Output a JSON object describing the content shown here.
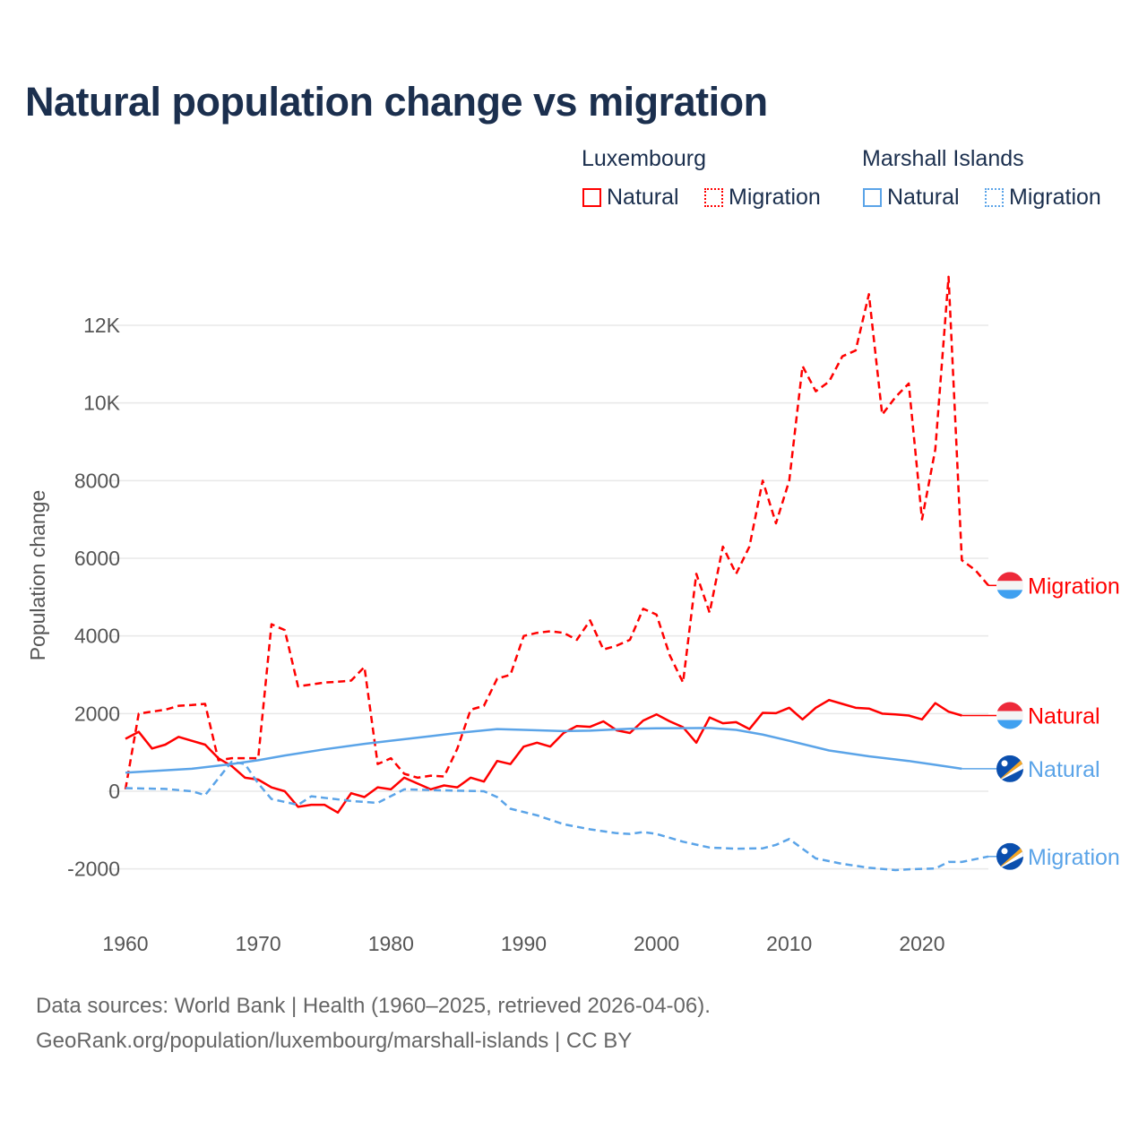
{
  "title": "Natural population change vs migration",
  "legend": {
    "groups": [
      {
        "name": "Luxembourg",
        "items": [
          {
            "label": "Natural",
            "style": "solid",
            "color": "#ff0000"
          },
          {
            "label": "Migration",
            "style": "dotted",
            "color": "#ff0000"
          }
        ]
      },
      {
        "name": "Marshall Islands",
        "items": [
          {
            "label": "Natural",
            "style": "solid",
            "color": "#5ba4e8"
          },
          {
            "label": "Migration",
            "style": "dotted",
            "color": "#5ba4e8"
          }
        ]
      }
    ]
  },
  "footer": {
    "line1": "Data sources: World Bank | Health (1960–2025, retrieved 2026-04-06).",
    "line2": "GeoRank.org/population/luxembourg/marshall-islands | CC BY"
  },
  "chart_data": {
    "type": "line",
    "title": "Natural population change vs migration",
    "xlabel": "",
    "ylabel": "Population change",
    "xlim": [
      1960,
      2025
    ],
    "ylim": [
      -3000,
      13500
    ],
    "xticks": [
      1960,
      1970,
      1980,
      1990,
      2000,
      2010,
      2020
    ],
    "xtick_labels": [
      "1960",
      "1970",
      "1980",
      "1990",
      "2000",
      "2010",
      "2020"
    ],
    "yticks": [
      -2000,
      0,
      2000,
      4000,
      6000,
      8000,
      10000,
      12000
    ],
    "ytick_labels": [
      "-2000",
      "0",
      "2000",
      "4000",
      "6000",
      "8000",
      "10K",
      "12K"
    ],
    "grid": true,
    "series": [
      {
        "name": "Luxembourg Natural",
        "end_label": "Natural",
        "country": "Luxembourg",
        "color": "#ff0000",
        "dash": false,
        "flag": "luxembourg-flag",
        "points": [
          [
            1960,
            1350
          ],
          [
            1961,
            1530
          ],
          [
            1962,
            1100
          ],
          [
            1963,
            1200
          ],
          [
            1964,
            1400
          ],
          [
            1965,
            1300
          ],
          [
            1966,
            1200
          ],
          [
            1967,
            850
          ],
          [
            1968,
            650
          ],
          [
            1969,
            350
          ],
          [
            1970,
            300
          ],
          [
            1971,
            100
          ],
          [
            1972,
            0
          ],
          [
            1973,
            -400
          ],
          [
            1974,
            -350
          ],
          [
            1975,
            -350
          ],
          [
            1976,
            -550
          ],
          [
            1977,
            -50
          ],
          [
            1978,
            -150
          ],
          [
            1979,
            100
          ],
          [
            1980,
            50
          ],
          [
            1981,
            350
          ],
          [
            1982,
            200
          ],
          [
            1983,
            50
          ],
          [
            1984,
            150
          ],
          [
            1985,
            100
          ],
          [
            1986,
            350
          ],
          [
            1987,
            250
          ],
          [
            1988,
            780
          ],
          [
            1989,
            700
          ],
          [
            1990,
            1150
          ],
          [
            1991,
            1250
          ],
          [
            1992,
            1150
          ],
          [
            1993,
            1500
          ],
          [
            1994,
            1680
          ],
          [
            1995,
            1660
          ],
          [
            1996,
            1800
          ],
          [
            1997,
            1570
          ],
          [
            1998,
            1500
          ],
          [
            1999,
            1820
          ],
          [
            2000,
            1980
          ],
          [
            2001,
            1800
          ],
          [
            2002,
            1650
          ],
          [
            2003,
            1250
          ],
          [
            2004,
            1900
          ],
          [
            2005,
            1750
          ],
          [
            2006,
            1780
          ],
          [
            2007,
            1600
          ],
          [
            2008,
            2020
          ],
          [
            2009,
            2010
          ],
          [
            2010,
            2150
          ],
          [
            2011,
            1850
          ],
          [
            2012,
            2150
          ],
          [
            2013,
            2350
          ],
          [
            2014,
            2250
          ],
          [
            2015,
            2150
          ],
          [
            2016,
            2130
          ],
          [
            2017,
            2000
          ],
          [
            2018,
            1980
          ],
          [
            2019,
            1950
          ],
          [
            2020,
            1850
          ],
          [
            2021,
            2270
          ],
          [
            2022,
            2050
          ],
          [
            2023,
            1950
          ]
        ]
      },
      {
        "name": "Luxembourg Migration",
        "end_label": "Migration",
        "country": "Luxembourg",
        "color": "#ff0000",
        "dash": true,
        "flag": "luxembourg-flag",
        "points": [
          [
            1960,
            50
          ],
          [
            1961,
            2000
          ],
          [
            1962,
            2050
          ],
          [
            1963,
            2100
          ],
          [
            1964,
            2200
          ],
          [
            1965,
            2220
          ],
          [
            1966,
            2250
          ],
          [
            1967,
            800
          ],
          [
            1968,
            850
          ],
          [
            1969,
            850
          ],
          [
            1970,
            850
          ],
          [
            1971,
            4300
          ],
          [
            1972,
            4150
          ],
          [
            1973,
            2700
          ],
          [
            1974,
            2750
          ],
          [
            1975,
            2800
          ],
          [
            1976,
            2820
          ],
          [
            1977,
            2850
          ],
          [
            1978,
            3200
          ],
          [
            1979,
            700
          ],
          [
            1980,
            850
          ],
          [
            1981,
            450
          ],
          [
            1982,
            350
          ],
          [
            1983,
            400
          ],
          [
            1984,
            380
          ],
          [
            1985,
            1100
          ],
          [
            1986,
            2100
          ],
          [
            1987,
            2200
          ],
          [
            1988,
            2900
          ],
          [
            1989,
            3000
          ],
          [
            1990,
            4000
          ],
          [
            1991,
            4080
          ],
          [
            1992,
            4120
          ],
          [
            1993,
            4080
          ],
          [
            1994,
            3900
          ],
          [
            1995,
            4400
          ],
          [
            1996,
            3650
          ],
          [
            1997,
            3750
          ],
          [
            1998,
            3900
          ],
          [
            1999,
            4700
          ],
          [
            2000,
            4550
          ],
          [
            2001,
            3500
          ],
          [
            2002,
            2800
          ],
          [
            2003,
            5600
          ],
          [
            2004,
            4600
          ],
          [
            2005,
            6300
          ],
          [
            2006,
            5600
          ],
          [
            2007,
            6300
          ],
          [
            2008,
            8000
          ],
          [
            2009,
            6900
          ],
          [
            2010,
            8000
          ],
          [
            2011,
            10950
          ],
          [
            2012,
            10300
          ],
          [
            2013,
            10550
          ],
          [
            2014,
            11200
          ],
          [
            2015,
            11350
          ],
          [
            2016,
            12800
          ],
          [
            2017,
            9700
          ],
          [
            2018,
            10150
          ],
          [
            2019,
            10500
          ],
          [
            2020,
            7000
          ],
          [
            2021,
            8800
          ],
          [
            2022,
            13250
          ],
          [
            2023,
            5950
          ],
          [
            2024,
            5700
          ],
          [
            2025,
            5300
          ]
        ]
      },
      {
        "name": "Marshall Islands Natural",
        "end_label": "Natural",
        "country": "Marshall Islands",
        "color": "#5ba4e8",
        "dash": false,
        "flag": "marshall-islands-flag",
        "points": [
          [
            1960,
            480
          ],
          [
            1962,
            520
          ],
          [
            1965,
            580
          ],
          [
            1968,
            700
          ],
          [
            1970,
            800
          ],
          [
            1972,
            920
          ],
          [
            1975,
            1080
          ],
          [
            1978,
            1220
          ],
          [
            1980,
            1300
          ],
          [
            1983,
            1420
          ],
          [
            1985,
            1500
          ],
          [
            1988,
            1600
          ],
          [
            1990,
            1580
          ],
          [
            1993,
            1550
          ],
          [
            1995,
            1560
          ],
          [
            1998,
            1610
          ],
          [
            2000,
            1620
          ],
          [
            2004,
            1630
          ],
          [
            2006,
            1580
          ],
          [
            2008,
            1460
          ],
          [
            2010,
            1300
          ],
          [
            2013,
            1050
          ],
          [
            2016,
            900
          ],
          [
            2019,
            780
          ],
          [
            2021,
            680
          ],
          [
            2023,
            580
          ]
        ]
      },
      {
        "name": "Marshall Islands Migration",
        "end_label": "Migration",
        "country": "Marshall Islands",
        "color": "#5ba4e8",
        "dash": true,
        "flag": "marshall-islands-flag",
        "points": [
          [
            1960,
            80
          ],
          [
            1963,
            60
          ],
          [
            1965,
            0
          ],
          [
            1966,
            -100
          ],
          [
            1968,
            760
          ],
          [
            1969,
            700
          ],
          [
            1970,
            200
          ],
          [
            1971,
            -200
          ],
          [
            1973,
            -350
          ],
          [
            1974,
            -130
          ],
          [
            1977,
            -250
          ],
          [
            1979,
            -300
          ],
          [
            1981,
            50
          ],
          [
            1983,
            30
          ],
          [
            1987,
            0
          ],
          [
            1988,
            -150
          ],
          [
            1989,
            -450
          ],
          [
            1991,
            -620
          ],
          [
            1993,
            -850
          ],
          [
            1995,
            -980
          ],
          [
            1997,
            -1080
          ],
          [
            1998,
            -1100
          ],
          [
            1999,
            -1050
          ],
          [
            2000,
            -1100
          ],
          [
            2002,
            -1300
          ],
          [
            2004,
            -1450
          ],
          [
            2006,
            -1480
          ],
          [
            2008,
            -1470
          ],
          [
            2009,
            -1380
          ],
          [
            2010,
            -1230
          ],
          [
            2012,
            -1730
          ],
          [
            2014,
            -1870
          ],
          [
            2016,
            -1970
          ],
          [
            2018,
            -2030
          ],
          [
            2019,
            -2010
          ],
          [
            2021,
            -1990
          ],
          [
            2022,
            -1820
          ],
          [
            2023,
            -1820
          ],
          [
            2025,
            -1680
          ]
        ]
      }
    ]
  }
}
